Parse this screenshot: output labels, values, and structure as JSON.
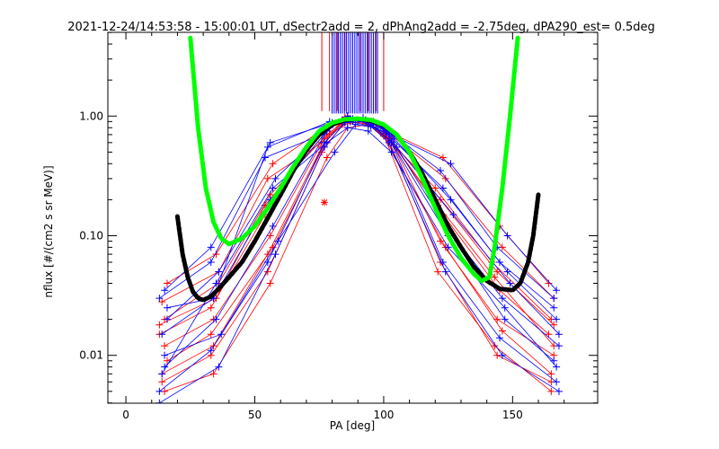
{
  "chart_data": {
    "type": "scatter",
    "title": "2021-12-24/14:53:58 - 15:00:01 UT, dSectr2add = 2, dPhAng2add = -2.75deg, dPA290_est=   0.5deg",
    "xlabel": "PA [deg]",
    "ylabel": "nflux [#/(cm2 s sr MeV)]",
    "xlim": [
      -7,
      183
    ],
    "ylim_log10": [
      -2.4,
      0.7
    ],
    "y_scale": "log",
    "x_ticks": [
      0,
      50,
      100,
      150
    ],
    "x_tick_labels": [
      "0",
      "50",
      "100",
      "150"
    ],
    "y_ticks": [
      0.01,
      0.1,
      1.0
    ],
    "y_tick_labels": [
      "0.01",
      "0.10",
      "1.00"
    ],
    "grid": false,
    "legend": "none",
    "colors": {
      "blue_series": "#0000ff",
      "red_series": "#ff0000",
      "black_fit": "#000000",
      "green_fit": "#00ff00"
    },
    "red_asterisk": {
      "x": 77,
      "y": 0.19
    },
    "green_fit": {
      "name": "",
      "description": "bowl-shaped fitted curve, PA ~25 to 152",
      "x": [
        25,
        28,
        31,
        34,
        37,
        40,
        45,
        50,
        55,
        60,
        65,
        70,
        75,
        80,
        85,
        90,
        95,
        100,
        105,
        110,
        115,
        120,
        125,
        130,
        135,
        138,
        141,
        143,
        146,
        149,
        152
      ],
      "y": [
        4.5,
        0.8,
        0.25,
        0.13,
        0.095,
        0.085,
        0.095,
        0.12,
        0.17,
        0.25,
        0.38,
        0.55,
        0.75,
        0.88,
        0.94,
        0.95,
        0.93,
        0.85,
        0.7,
        0.5,
        0.3,
        0.17,
        0.1,
        0.065,
        0.048,
        0.042,
        0.045,
        0.08,
        0.25,
        1.0,
        4.5
      ]
    },
    "black_fit": {
      "name": "",
      "x": [
        20,
        22,
        24,
        26,
        28,
        30,
        33,
        36,
        40,
        45,
        50,
        55,
        60,
        65,
        70,
        75,
        80,
        85,
        90,
        95,
        100,
        105,
        110,
        115,
        120,
        125,
        130,
        135,
        140,
        145,
        150,
        153,
        156,
        158,
        160
      ],
      "y": [
        0.145,
        0.07,
        0.045,
        0.034,
        0.03,
        0.029,
        0.031,
        0.036,
        0.045,
        0.06,
        0.09,
        0.14,
        0.22,
        0.35,
        0.52,
        0.7,
        0.85,
        0.93,
        0.95,
        0.92,
        0.84,
        0.7,
        0.5,
        0.33,
        0.2,
        0.12,
        0.08,
        0.055,
        0.042,
        0.036,
        0.035,
        0.04,
        0.06,
        0.1,
        0.22
      ]
    },
    "blue_curves": [
      {
        "x": [
          13,
          33,
          55,
          77,
          85,
          93,
          101,
          123,
          145,
          167
        ],
        "y": [
          0.005,
          0.011,
          0.06,
          0.6,
          0.9,
          0.93,
          0.75,
          0.06,
          0.014,
          0.006
        ]
      },
      {
        "x": [
          15,
          35,
          57,
          78,
          86,
          94,
          103,
          125,
          147,
          166
        ],
        "y": [
          0.008,
          0.02,
          0.12,
          0.75,
          1.0,
          0.9,
          0.6,
          0.1,
          0.02,
          0.009
        ]
      },
      {
        "x": [
          14,
          34,
          56,
          79,
          87,
          95,
          102,
          124,
          146,
          168
        ],
        "y": [
          0.015,
          0.03,
          0.2,
          0.8,
          0.95,
          0.85,
          0.7,
          0.12,
          0.03,
          0.012
        ]
      },
      {
        "x": [
          16,
          36,
          58,
          80,
          88,
          96,
          104,
          126,
          148,
          167
        ],
        "y": [
          0.02,
          0.05,
          0.3,
          0.85,
          0.92,
          0.88,
          0.65,
          0.2,
          0.05,
          0.02
        ]
      },
      {
        "x": [
          13,
          33,
          54,
          76,
          84,
          92,
          100,
          122,
          144,
          166
        ],
        "y": [
          0.03,
          0.06,
          0.45,
          0.7,
          0.93,
          0.97,
          0.8,
          0.35,
          0.08,
          0.03
        ]
      },
      {
        "x": [
          15,
          37,
          59,
          81,
          89,
          97,
          105,
          127,
          149,
          168
        ],
        "y": [
          0.01,
          0.015,
          0.09,
          0.5,
          0.85,
          0.8,
          0.55,
          0.15,
          0.04,
          0.015
        ]
      },
      {
        "x": [
          14,
          35,
          57,
          78,
          86,
          94,
          103,
          125,
          147,
          167
        ],
        "y": [
          0.007,
          0.04,
          0.25,
          0.6,
          0.8,
          0.75,
          0.5,
          0.08,
          0.025,
          0.008
        ]
      },
      {
        "x": [
          16,
          34,
          55,
          79,
          87,
          95,
          101,
          123,
          145,
          166
        ],
        "y": [
          0.025,
          0.03,
          0.55,
          0.9,
          0.9,
          0.82,
          0.72,
          0.25,
          0.06,
          0.025
        ]
      },
      {
        "x": [
          13,
          36,
          58,
          77,
          85,
          93,
          102,
          124,
          146,
          168
        ],
        "y": [
          0.004,
          0.008,
          0.07,
          0.55,
          0.88,
          0.9,
          0.6,
          0.05,
          0.01,
          0.005
        ]
      },
      {
        "x": [
          15,
          33,
          56,
          80,
          88,
          96,
          104,
          126,
          148,
          167
        ],
        "y": [
          0.035,
          0.08,
          0.6,
          0.88,
          0.95,
          0.9,
          0.68,
          0.4,
          0.1,
          0.035
        ]
      }
    ],
    "red_curves": [
      {
        "x": [
          14,
          33,
          55,
          76,
          84,
          92,
          100,
          121,
          143,
          165
        ],
        "y": [
          0.006,
          0.01,
          0.05,
          0.5,
          0.85,
          0.9,
          0.7,
          0.05,
          0.012,
          0.005
        ]
      },
      {
        "x": [
          15,
          34,
          56,
          77,
          85,
          93,
          101,
          122,
          144,
          166
        ],
        "y": [
          0.012,
          0.02,
          0.1,
          0.65,
          0.95,
          0.92,
          0.75,
          0.09,
          0.02,
          0.01
        ]
      },
      {
        "x": [
          13,
          35,
          54,
          78,
          86,
          94,
          102,
          123,
          145,
          164
        ],
        "y": [
          0.018,
          0.03,
          0.18,
          0.75,
          1.0,
          0.88,
          0.65,
          0.15,
          0.035,
          0.015
        ]
      },
      {
        "x": [
          16,
          33,
          57,
          79,
          87,
          95,
          103,
          120,
          142,
          165
        ],
        "y": [
          0.009,
          0.015,
          0.08,
          0.7,
          0.9,
          0.85,
          0.6,
          0.25,
          0.06,
          0.02
        ]
      },
      {
        "x": [
          14,
          36,
          55,
          76,
          84,
          92,
          100,
          124,
          146,
          166
        ],
        "y": [
          0.028,
          0.05,
          0.3,
          0.6,
          0.88,
          0.95,
          0.78,
          0.3,
          0.08,
          0.03
        ]
      },
      {
        "x": [
          15,
          34,
          56,
          78,
          86,
          94,
          102,
          122,
          144,
          165
        ],
        "y": [
          0.005,
          0.007,
          0.04,
          0.45,
          0.8,
          0.85,
          0.62,
          0.06,
          0.01,
          0.006
        ]
      },
      {
        "x": [
          13,
          33,
          54,
          77,
          85,
          93,
          101,
          121,
          143,
          166
        ],
        "y": [
          0.015,
          0.025,
          0.15,
          0.8,
          0.98,
          0.9,
          0.7,
          0.18,
          0.045,
          0.012
        ]
      },
      {
        "x": [
          16,
          35,
          57,
          79,
          87,
          95,
          103,
          123,
          145,
          164
        ],
        "y": [
          0.04,
          0.07,
          0.4,
          0.85,
          0.93,
          0.88,
          0.72,
          0.45,
          0.12,
          0.04
        ]
      },
      {
        "x": [
          14,
          34,
          55,
          76,
          84,
          92,
          100,
          124,
          146,
          165
        ],
        "y": [
          0.007,
          0.012,
          0.07,
          0.55,
          0.9,
          0.92,
          0.68,
          0.08,
          0.016,
          0.007
        ]
      },
      {
        "x": [
          15,
          36,
          56,
          78,
          86,
          94,
          102,
          122,
          144,
          166
        ],
        "y": [
          0.02,
          0.04,
          0.22,
          0.7,
          0.95,
          0.86,
          0.66,
          0.2,
          0.05,
          0.018
        ]
      }
    ]
  }
}
